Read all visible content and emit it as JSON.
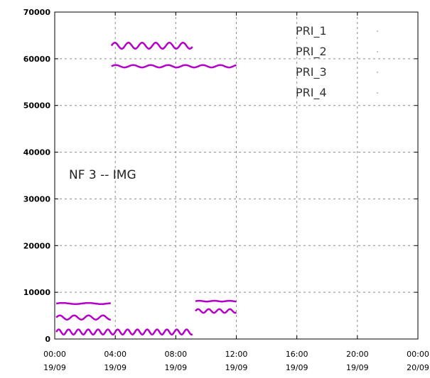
{
  "chart_data": {
    "type": "line",
    "title": "",
    "xlabel": "",
    "ylabel": "",
    "annotation": "NF 3 -- IMG",
    "ylim": [
      0,
      70000
    ],
    "xlim_hours": [
      0,
      48
    ],
    "grid": true,
    "legend_position": "top-right",
    "y_ticks": [
      "0",
      "10000",
      "20000",
      "30000",
      "40000",
      "50000",
      "60000",
      "70000"
    ],
    "x_ticks": [
      {
        "time": "00:00",
        "date": "19/09"
      },
      {
        "time": "04:00",
        "date": "19/09"
      },
      {
        "time": "08:00",
        "date": "19/09"
      },
      {
        "time": "12:00",
        "date": "19/09"
      },
      {
        "time": "16:00",
        "date": "19/09"
      },
      {
        "time": "20:00",
        "date": "19/09"
      },
      {
        "time": "00:00",
        "date": "20/09"
      }
    ],
    "series_color": "#b400c8",
    "series": [
      {
        "name": "PRI_1",
        "segments": [
          {
            "x": [
              0.2,
              7.4
            ],
            "base": 7600,
            "amp": 120,
            "period": 3.4
          },
          {
            "x": [
              7.5,
              18.2
            ],
            "base": 62800,
            "amp": 650,
            "period": 1.8
          },
          {
            "x": [
              18.6,
              24.0
            ],
            "base": 8100,
            "amp": 80,
            "period": 2.0
          }
        ]
      },
      {
        "name": "PRI_2",
        "segments": [
          {
            "x": [
              0.2,
              7.4
            ],
            "base": 4600,
            "amp": 450,
            "period": 1.9
          },
          {
            "x": [
              7.5,
              24.0
            ],
            "base": 58400,
            "amp": 260,
            "period": 2.3
          }
        ]
      },
      {
        "name": "PRI_3",
        "segments": [
          {
            "x": [
              0.2,
              18.2
            ],
            "base": 1500,
            "amp": 550,
            "period": 1.3
          }
        ]
      },
      {
        "name": "PRI_4",
        "segments": [
          {
            "x": [
              18.6,
              24.0
            ],
            "base": 6000,
            "amp": 400,
            "period": 1.4
          }
        ]
      }
    ]
  }
}
